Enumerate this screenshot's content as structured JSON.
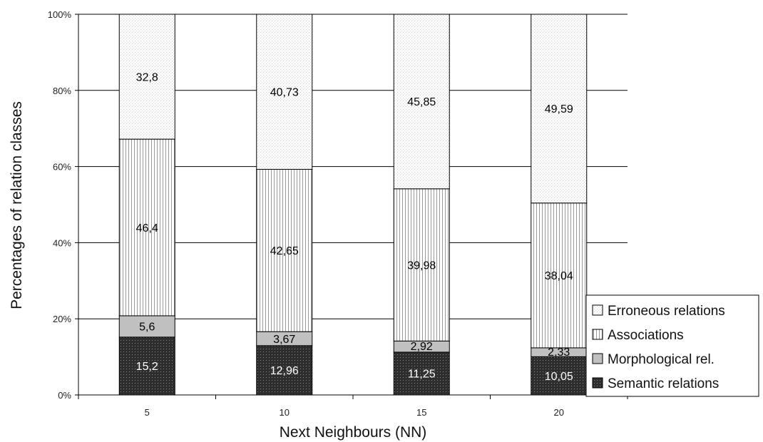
{
  "chart_data": {
    "type": "bar",
    "stacked": true,
    "percent_stacked": true,
    "title": "",
    "xlabel": "Next Neighbours (NN)",
    "ylabel": "Percentages of relation classes",
    "categories": [
      "5",
      "10",
      "15",
      "20"
    ],
    "ylim": [
      0,
      100
    ],
    "y_ticks": [
      "0%",
      "20%",
      "40%",
      "60%",
      "80%",
      "100%"
    ],
    "grid": true,
    "legend_position": "bottom-right",
    "series": [
      {
        "name": "Semantic relations",
        "values": [
          15.2,
          12.96,
          11.25,
          10.05
        ],
        "labels": [
          "15,2",
          "12,96",
          "11,25",
          "10,05"
        ],
        "color": "#333333",
        "pattern": "dark-dots"
      },
      {
        "name": "Morphological rel.",
        "values": [
          5.6,
          3.67,
          2.92,
          2.33
        ],
        "labels": [
          "5,6",
          "3,67",
          "2,92",
          "2,33"
        ],
        "color": "#c0c0c0",
        "pattern": "solid-gray"
      },
      {
        "name": "Associations",
        "values": [
          46.4,
          42.65,
          39.98,
          38.04
        ],
        "labels": [
          "46,4",
          "42,65",
          "39,98",
          "38,04"
        ],
        "color": "#ffffff",
        "pattern": "vertical-lines"
      },
      {
        "name": "Erroneous relations",
        "values": [
          32.8,
          40.73,
          45.85,
          49.59
        ],
        "labels": [
          "32,8",
          "40,73",
          "45,85",
          "49,59"
        ],
        "color": "#ffffff",
        "pattern": "light-dots"
      }
    ],
    "legend_order": [
      "Erroneous relations",
      "Associations",
      "Morphological rel.",
      "Semantic relations"
    ]
  }
}
